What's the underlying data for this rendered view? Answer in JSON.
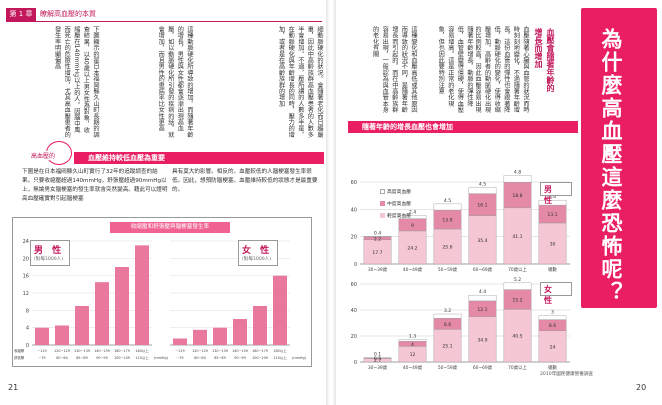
{
  "header": {
    "chapter": "第 1 章",
    "section": "瞭解高血壓的本質"
  },
  "left_page": {
    "page_number": "21",
    "body_paragraphs": [
      "細動脈硬化的狀況。會隨著老化而日趨嚴重，因此中高齡族群高血壓患者的人數多半會增加。不過，壓所謂的人數多半是，在動脈硬化與年齡增長的同時，壓力的增加，或者是在高齡族群的增加",
      "這種動脈硬化所導致的增加，而隨著年齡的增長，男性與女性都會逐漸出現高血壓，如以動脈硬化所引發的疾病的話，就會增加，而且男性的患病率比女性更高",
      "下圖顯示的是日本福岡縣久山町長期的調查結果，以40歲以上男女性為對象，收縮壓在140mmHg以上的人，因腦中風而死亡的危險性增加，尤其高血壓患者的發生率明顯偏高"
    ],
    "mascot_label": "高血壓的",
    "section_title": "血壓維持較低血壓為重要",
    "sub_para_left": "下圖是在日本福岡縣久山町實行了32年的追蹤調查的結果。只要收縮壓超過140mmHg，舒張壓超過90mmHg以上，無論男女腦梗塞的發生率就會突然變高。藉此可以證明高血壓確實對引起腦梗塞",
    "sub_para_right": "具有莫大的影響。相反的，血壓較低的人腦梗塞發生率很低。因此，想預防腦梗塞，血壓維持較低的狀態才是最重要的。",
    "chart": {
      "title": "收縮壓和舒張壓與腦梗塞發生率",
      "male_label": "男 性",
      "male_sub": "(對每1000人)",
      "female_label": "女 性",
      "female_sub": "(對每1000人)",
      "y_ticks": [
        "0",
        "4",
        "8",
        "12",
        "16",
        "20",
        "24"
      ],
      "x_row1_label": "收縮壓",
      "x_row2_label": "舒張壓",
      "male_x1": [
        "~119",
        "120~129",
        "130~139",
        "140~159",
        "160~179",
        "180以上"
      ],
      "male_x2": [
        "~79",
        "80~84",
        "85~89",
        "90~99",
        "100~109",
        "110以上"
      ],
      "female_x1": [
        "~119",
        "120~129",
        "130~139",
        "140~159",
        "160~179",
        "180以上"
      ],
      "female_x2": [
        "~79",
        "80~84",
        "85~89",
        "90~99",
        "100~109",
        "110以上"
      ],
      "unit_left": "(mmHg)",
      "unit_right": "(mmHg)"
    }
  },
  "right_page": {
    "page_number": "20",
    "title": "為什麼高血壓這麼恐怖呢？",
    "subhead_lines": [
      "血壓會隨著年齡的",
      "增長而增加"
    ],
    "body_paragraphs": [
      "血壓隨著心臟與血管的狀況而時時刻刻地變化，不過隨著年齡增長，這份血管的彈性也會跟著降低，動脈硬化的變化，使得收縮壓增加。高齡者的動脈硬化出現的比例較高，因此血壓容易出現較大的數值，使得高齡者高血壓的比例增加",
      "隨著年齡增長，動脈的彈性降低，血管壁變得僵硬，使得血壓容易增高，這是正常的老化現象，但也因此要特別注意",
      "這種變化和血壓高低或其他原因而導致的狀況不同，是隨著年齡增長而引起的，而在中高齡族群容易出現，一般認為與血管本身的老化有關"
    ],
    "section_title": "隨著年齡的增長血壓也會增加",
    "legend": [
      "高度高血壓",
      "中度高血壓",
      "輕度高血壓"
    ],
    "footer_note": "2010年國民健康營養調查",
    "x_labels": [
      "30~39歲",
      "40~49歲",
      "50~59歲",
      "60~69歲",
      "70歲以上",
      "總數"
    ]
  },
  "chart_data": [
    {
      "type": "bar",
      "title": "收縮壓和舒張壓與腦梗塞發生率",
      "panel": "男 性",
      "categories": [
        "~119 / ~79",
        "120~129 / 80~84",
        "130~139 / 85~89",
        "140~159 / 90~99",
        "160~179 / 100~109",
        "180以上 / 110以上"
      ],
      "values": [
        4.0,
        4.5,
        9.0,
        14.5,
        18.0,
        23.0
      ],
      "ylim": [
        0,
        24
      ]
    },
    {
      "type": "bar",
      "title": "收縮壓和舒張壓與腦梗塞發生率",
      "panel": "女 性",
      "categories": [
        "~119 / ~79",
        "120~129 / 80~84",
        "130~139 / 85~89",
        "140~159 / 90~99",
        "160~179 / 100~109",
        "180以上 / 110以上"
      ],
      "values": [
        1.5,
        3.5,
        4.0,
        6.0,
        9.0,
        16.0
      ],
      "ylim": [
        0,
        24
      ]
    },
    {
      "type": "bar",
      "title": "隨著年齡的增長血壓也會增加",
      "panel": "男 性",
      "categories": [
        "30~39歲",
        "40~49歲",
        "50~59歲",
        "60~69歲",
        "70歲以上",
        "總數"
      ],
      "series": [
        {
          "name": "輕度高血壓",
          "values": [
            17.7,
            24.2,
            25.6,
            35.4,
            41.1,
            30.0
          ]
        },
        {
          "name": "中度高血壓",
          "values": [
            2.2,
            9.0,
            13.9,
            16.1,
            18.8,
            13.1
          ]
        },
        {
          "name": "高度高血壓",
          "values": [
            0.4,
            2.4,
            4.5,
            4.5,
            4.8,
            3.6
          ]
        }
      ],
      "ylim": [
        0,
        60
      ],
      "yticks": [
        0,
        20,
        40,
        60
      ]
    },
    {
      "type": "bar",
      "title": "隨著年齡的增長血壓也會增加",
      "panel": "女 性",
      "categories": [
        "30~39歲",
        "40~49歲",
        "50~59歲",
        "60~69歲",
        "70歲以上",
        "總數"
      ],
      "series": [
        {
          "name": "輕度高血壓",
          "values": [
            2.7,
            12.0,
            25.1,
            34.9,
            40.5,
            24.0
          ]
        },
        {
          "name": "中度高血壓",
          "values": [
            0.5,
            4.0,
            8.6,
            12.1,
            15.2,
            8.6
          ]
        },
        {
          "name": "高度高血壓",
          "values": [
            0.1,
            1.3,
            3.2,
            4.4,
            5.2,
            3.0
          ]
        }
      ],
      "ylim": [
        0,
        60
      ],
      "yticks": [
        0,
        20,
        40,
        60
      ]
    }
  ]
}
